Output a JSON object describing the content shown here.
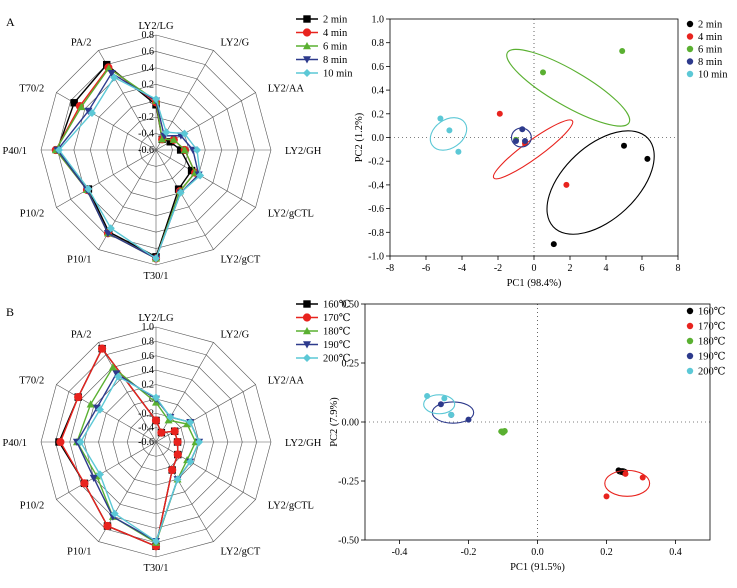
{
  "chart_data": [
    {
      "id": "A-radar",
      "panel_label": "A",
      "type": "radar",
      "axes": [
        "LY2/LG",
        "LY2/G",
        "LY2/AA",
        "LY2/GH",
        "LY2/gCTL",
        "LY2/gCT",
        "T30/1",
        "P10/1",
        "P10/2",
        "P40/1",
        "T70/2",
        "PA/2"
      ],
      "rlim": [
        -0.6,
        0.8
      ],
      "ticks": [
        -0.6,
        -0.4,
        -0.2,
        0.0,
        0.2,
        0.4,
        0.6,
        0.8
      ],
      "tick_labels": [
        "-0.6",
        "-0.4",
        "-0.2",
        "0",
        "0.2",
        "0.4",
        "0.6",
        "0.8"
      ],
      "grid": true,
      "legend_position": "top-right",
      "series": [
        {
          "name": "2 min",
          "color": "#000000",
          "marker": "square",
          "values": [
            -0.05,
            -0.45,
            -0.4,
            -0.3,
            -0.1,
            -0.05,
            0.7,
            0.55,
            0.35,
            0.6,
            0.55,
            0.6
          ]
        },
        {
          "name": "4 min",
          "color": "#e8231e",
          "marker": "circle",
          "values": [
            -0.02,
            -0.45,
            -0.35,
            -0.25,
            -0.05,
            -0.02,
            0.72,
            0.57,
            0.37,
            0.62,
            0.47,
            0.56
          ]
        },
        {
          "name": "6 min",
          "color": "#5ab031",
          "marker": "triangle-up",
          "values": [
            0.0,
            -0.45,
            -0.35,
            -0.25,
            -0.05,
            -0.02,
            0.72,
            0.57,
            0.37,
            0.62,
            0.45,
            0.55
          ]
        },
        {
          "name": "8 min",
          "color": "#2d3a8c",
          "marker": "triangle-down",
          "values": [
            0.0,
            -0.4,
            -0.25,
            -0.15,
            0.0,
            0.0,
            0.72,
            0.57,
            0.37,
            0.6,
            0.35,
            0.48
          ]
        },
        {
          "name": "10 min",
          "color": "#5cc8d6",
          "marker": "diamond",
          "values": [
            0.02,
            -0.35,
            -0.2,
            -0.1,
            0.02,
            0.0,
            0.72,
            0.5,
            0.35,
            0.58,
            0.3,
            0.42
          ]
        }
      ]
    },
    {
      "id": "A-pca",
      "type": "scatter",
      "xlabel": "PC1 (98.4%)",
      "ylabel": "PC2 (1.2%)",
      "xlim": [
        -8,
        8
      ],
      "ylim": [
        -1.0,
        1.0
      ],
      "xticks": [
        -8,
        -6,
        -4,
        -2,
        0,
        2,
        4,
        6,
        8
      ],
      "xtick_labels": [
        "-8",
        "-6",
        "-4",
        "-2",
        "0",
        "2",
        "4",
        "6",
        "8"
      ],
      "yticks": [
        -1.0,
        -0.8,
        -0.6,
        -0.4,
        -0.2,
        0.0,
        0.2,
        0.4,
        0.6,
        0.8,
        1.0
      ],
      "ytick_labels": [
        "-1.0",
        "-0.8",
        "-0.6",
        "-0.4",
        "-0.2",
        "0.0",
        "0.2",
        "0.4",
        "0.6",
        "0.8",
        "1.0"
      ],
      "legend_position": "top-right",
      "series": [
        {
          "name": "2 min",
          "color": "#000000",
          "points": [
            [
              6.3,
              -0.18
            ],
            [
              5.0,
              -0.07
            ],
            [
              1.1,
              -0.9
            ]
          ],
          "ellipse": {
            "cx": 3.7,
            "cy": -0.38,
            "rx": 3.6,
            "ry": 0.31,
            "angle": -43
          }
        },
        {
          "name": "4 min",
          "color": "#e8231e",
          "points": [
            [
              -1.9,
              0.2
            ],
            [
              1.8,
              -0.4
            ],
            [
              -0.5,
              -0.05
            ]
          ],
          "ellipse": {
            "cx": -0.05,
            "cy": -0.1,
            "rx": 2.7,
            "ry": 0.075,
            "angle": -36
          }
        },
        {
          "name": "6 min",
          "color": "#5ab031",
          "points": [
            [
              0.5,
              0.55
            ],
            [
              4.9,
              0.73
            ],
            [
              -1.0,
              -0.02
            ]
          ],
          "ellipse": {
            "cx": 1.9,
            "cy": 0.42,
            "rx": 3.9,
            "ry": 0.15,
            "angle": 30
          }
        },
        {
          "name": "8 min",
          "color": "#2d3a8c",
          "points": [
            [
              -0.65,
              0.07
            ],
            [
              -0.5,
              -0.03
            ],
            [
              -1.0,
              -0.03
            ]
          ],
          "ellipse": {
            "cx": -0.7,
            "cy": 0.0,
            "rx": 0.55,
            "ry": 0.08,
            "angle": 0
          }
        },
        {
          "name": "10 min",
          "color": "#5cc8d6",
          "points": [
            [
              -5.2,
              0.16
            ],
            [
              -4.7,
              0.06
            ],
            [
              -4.2,
              -0.12
            ]
          ],
          "ellipse": {
            "cx": -4.75,
            "cy": 0.03,
            "rx": 1.1,
            "ry": 0.12,
            "angle": -35
          }
        }
      ]
    },
    {
      "id": "B-radar",
      "panel_label": "B",
      "type": "radar",
      "axes": [
        "LY2/LG",
        "LY2/G",
        "LY2/AA",
        "LY2/GH",
        "LY2/gCTL",
        "LY2/gCT",
        "T30/1",
        "P10/1",
        "P10/2",
        "P40/1",
        "T70/2",
        "PA/2"
      ],
      "rlim": [
        -0.6,
        1.0
      ],
      "ticks": [
        -0.6,
        -0.4,
        -0.2,
        0.0,
        0.2,
        0.4,
        0.6,
        0.8,
        1.0
      ],
      "tick_labels": [
        "-0.6",
        "-0.4",
        "-0.2",
        "0",
        "0.2",
        "0.4",
        "0.6",
        "0.8",
        "1.0"
      ],
      "grid": true,
      "legend_position": "top-right",
      "series": [
        {
          "name": "160℃",
          "color": "#000000",
          "marker": "square",
          "values": [
            -0.3,
            -0.45,
            -0.3,
            -0.3,
            -0.25,
            -0.15,
            0.85,
            0.75,
            0.55,
            0.75,
            0.65,
            0.9
          ]
        },
        {
          "name": "170℃",
          "color": "#e8231e",
          "marker": "circle",
          "values": [
            -0.3,
            -0.45,
            -0.3,
            -0.3,
            -0.25,
            -0.15,
            0.85,
            0.75,
            0.55,
            0.73,
            0.65,
            0.9
          ]
        },
        {
          "name": "180℃",
          "color": "#5ab031",
          "marker": "triangle-up",
          "values": [
            -0.05,
            -0.25,
            -0.1,
            -0.05,
            -0.1,
            0.0,
            0.8,
            0.6,
            0.35,
            0.5,
            0.45,
            0.6
          ]
        },
        {
          "name": "190℃",
          "color": "#2d3a8c",
          "marker": "triangle-down",
          "values": [
            0.0,
            -0.2,
            -0.05,
            0.0,
            -0.05,
            0.0,
            0.78,
            0.6,
            0.4,
            0.5,
            0.35,
            0.5
          ]
        },
        {
          "name": "200℃",
          "color": "#5cc8d6",
          "marker": "diamond",
          "values": [
            0.02,
            -0.2,
            -0.05,
            0.0,
            -0.05,
            0.0,
            0.78,
            0.55,
            0.3,
            0.45,
            0.3,
            0.45
          ]
        }
      ]
    },
    {
      "id": "B-pca",
      "type": "scatter",
      "xlabel": "PC1 (91.5%)",
      "ylabel": "PC2 (7.9%)",
      "xlim": [
        -0.5,
        0.5
      ],
      "ylim": [
        -0.5,
        0.5
      ],
      "xticks": [
        -0.4,
        -0.2,
        0.0,
        0.2,
        0.4
      ],
      "xtick_labels": [
        "-0.4",
        "-0.2",
        "0.0",
        "0.2",
        "0.4"
      ],
      "yticks": [
        -0.5,
        -0.25,
        0.0,
        0.25,
        0.5
      ],
      "ytick_labels": [
        "-0.50",
        "-0.25",
        "0.00",
        "0.25",
        "0.50"
      ],
      "legend_position": "top-right",
      "series": [
        {
          "name": "160℃",
          "color": "#000000",
          "points": [
            [
              0.235,
              -0.205
            ],
            [
              0.25,
              -0.215
            ],
            [
              0.245,
              -0.21
            ]
          ],
          "ellipse": {
            "cx": 0.245,
            "cy": -0.21,
            "rx": 0.015,
            "ry": 0.012,
            "angle": 0
          }
        },
        {
          "name": "170℃",
          "color": "#e8231e",
          "points": [
            [
              0.305,
              -0.235
            ],
            [
              0.2,
              -0.315
            ],
            [
              0.255,
              -0.22
            ]
          ],
          "ellipse": {
            "cx": 0.26,
            "cy": -0.26,
            "rx": 0.065,
            "ry": 0.055,
            "angle": 0
          }
        },
        {
          "name": "180℃",
          "color": "#5ab031",
          "points": [
            [
              -0.105,
              -0.04
            ],
            [
              -0.1,
              -0.045
            ],
            [
              -0.095,
              -0.038
            ]
          ],
          "ellipse": {
            "cx": -0.1,
            "cy": -0.04,
            "rx": 0.012,
            "ry": 0.01,
            "angle": 0
          }
        },
        {
          "name": "190℃",
          "color": "#2d3a8c",
          "points": [
            [
              -0.2,
              0.01
            ],
            [
              -0.25,
              0.03
            ],
            [
              -0.28,
              0.075
            ]
          ],
          "ellipse": {
            "cx": -0.245,
            "cy": 0.04,
            "rx": 0.06,
            "ry": 0.045,
            "angle": 0
          }
        },
        {
          "name": "200℃",
          "color": "#5cc8d6",
          "points": [
            [
              -0.32,
              0.11
            ],
            [
              -0.27,
              0.1
            ],
            [
              -0.25,
              0.03
            ]
          ],
          "ellipse": {
            "cx": -0.285,
            "cy": 0.075,
            "rx": 0.045,
            "ry": 0.04,
            "angle": 0
          }
        }
      ]
    }
  ]
}
